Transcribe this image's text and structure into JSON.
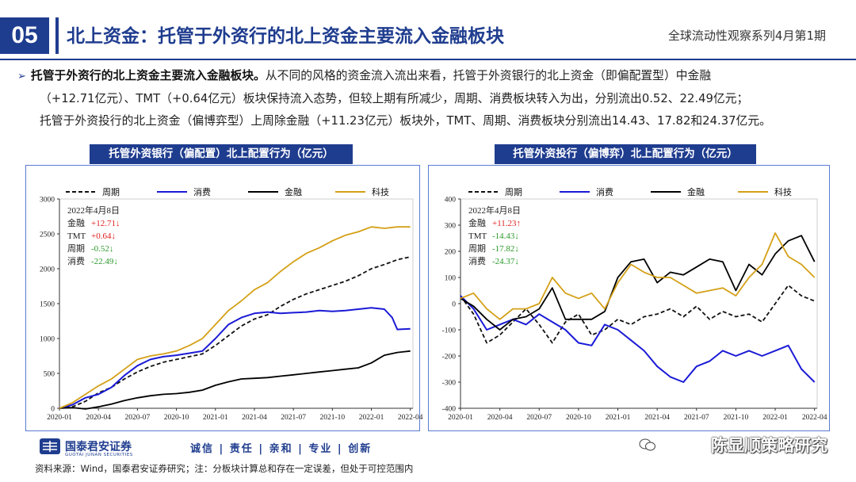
{
  "header": {
    "number": "05",
    "title": "北上资金：托管于外资行的北上资金主要流入金融板块",
    "subtitle": "全球流动性观察系列4月第1期"
  },
  "summary": {
    "bullet": "➢",
    "lead": "托管于外资行的北上资金主要流入金融板块。",
    "line1_rest": "从不同的风格的资金流入流出来看，托管于外资银行的北上资金（即偏配置型）中金融",
    "line2": "（+12.71亿元）、TMT（+0.64亿元）板块保持流入态势，但较上期有所减少，周期、消费板块转入为出，分别流出0.52、22.49亿元；",
    "line3": "托管于外资投行的北上资金（偏博弈型）上周除金融（+11.23亿元）板块外，TMT、周期、消费板块分别流出14.43、17.82和24.37亿元。"
  },
  "colors": {
    "zhouqi": "#111111",
    "xiaofei": "#1a1ad6",
    "jinrong": "#000000",
    "keji": "#d4a017",
    "up": "#e02020",
    "down": "#2a9a2a",
    "brand": "#1f3d8f"
  },
  "chart_data": [
    {
      "type": "line",
      "title": "托管外资银行（偏配置）北上配置行为（亿元）",
      "x_ticks": [
        "2020-01",
        "2020-04",
        "2020-07",
        "2020-10",
        "2021-01",
        "2021-04",
        "2021-07",
        "2021-10",
        "2022-01",
        "2022-04"
      ],
      "y_ticks": [
        "0",
        "500",
        "1000",
        "1500",
        "2000",
        "2500",
        "3000"
      ],
      "ylim": [
        0,
        3000
      ],
      "x_range": [
        0,
        27.2
      ],
      "legend": [
        "周期",
        "消费",
        "金融",
        "科技"
      ],
      "annotation": {
        "date": "2022年4月8日",
        "rows": [
          {
            "label": "金融",
            "value": "+12.71↓",
            "dir": "up"
          },
          {
            "label": "TMT",
            "value": "+0.64↓",
            "dir": "up"
          },
          {
            "label": "周期",
            "value": "-0.52↓",
            "dir": "down"
          },
          {
            "label": "消费",
            "value": "-22.49↓",
            "dir": "down"
          }
        ]
      },
      "series": [
        {
          "name": "周期",
          "style": "dashed",
          "points": [
            [
              0,
              0
            ],
            [
              1,
              20
            ],
            [
              2,
              100
            ],
            [
              3,
              220
            ],
            [
              4,
              300
            ],
            [
              5,
              420
            ],
            [
              6,
              520
            ],
            [
              7,
              600
            ],
            [
              8,
              660
            ],
            [
              9,
              700
            ],
            [
              10,
              740
            ],
            [
              11,
              780
            ],
            [
              12,
              900
            ],
            [
              13,
              1040
            ],
            [
              14,
              1180
            ],
            [
              15,
              1280
            ],
            [
              16,
              1340
            ],
            [
              17,
              1460
            ],
            [
              18,
              1560
            ],
            [
              19,
              1640
            ],
            [
              20,
              1700
            ],
            [
              21,
              1760
            ],
            [
              22,
              1820
            ],
            [
              23,
              1900
            ],
            [
              24,
              2000
            ],
            [
              25,
              2060
            ],
            [
              26,
              2130
            ],
            [
              27,
              2170
            ]
          ]
        },
        {
          "name": "消费",
          "style": "solid",
          "points": [
            [
              0,
              0
            ],
            [
              1,
              50
            ],
            [
              2,
              150
            ],
            [
              3,
              200
            ],
            [
              4,
              300
            ],
            [
              5,
              470
            ],
            [
              6,
              610
            ],
            [
              7,
              700
            ],
            [
              8,
              740
            ],
            [
              9,
              760
            ],
            [
              10,
              790
            ],
            [
              11,
              820
            ],
            [
              12,
              1000
            ],
            [
              13,
              1200
            ],
            [
              14,
              1300
            ],
            [
              15,
              1360
            ],
            [
              16,
              1380
            ],
            [
              17,
              1360
            ],
            [
              18,
              1370
            ],
            [
              19,
              1380
            ],
            [
              20,
              1400
            ],
            [
              21,
              1390
            ],
            [
              22,
              1400
            ],
            [
              23,
              1420
            ],
            [
              24,
              1440
            ],
            [
              25,
              1420
            ],
            [
              25.6,
              1300
            ],
            [
              26,
              1130
            ],
            [
              27,
              1140
            ]
          ]
        },
        {
          "name": "金融",
          "style": "solid",
          "points": [
            [
              0,
              0
            ],
            [
              1,
              10
            ],
            [
              2,
              -10
            ],
            [
              3,
              20
            ],
            [
              4,
              60
            ],
            [
              5,
              110
            ],
            [
              6,
              150
            ],
            [
              7,
              180
            ],
            [
              8,
              200
            ],
            [
              9,
              210
            ],
            [
              10,
              230
            ],
            [
              11,
              260
            ],
            [
              12,
              330
            ],
            [
              13,
              380
            ],
            [
              14,
              420
            ],
            [
              15,
              430
            ],
            [
              16,
              440
            ],
            [
              17,
              460
            ],
            [
              18,
              480
            ],
            [
              19,
              500
            ],
            [
              20,
              520
            ],
            [
              21,
              540
            ],
            [
              22,
              560
            ],
            [
              23,
              580
            ],
            [
              24,
              650
            ],
            [
              25,
              760
            ],
            [
              26,
              800
            ],
            [
              27,
              820
            ]
          ]
        },
        {
          "name": "科技",
          "style": "solid",
          "points": [
            [
              0,
              0
            ],
            [
              1,
              80
            ],
            [
              2,
              200
            ],
            [
              3,
              320
            ],
            [
              4,
              420
            ],
            [
              5,
              560
            ],
            [
              6,
              700
            ],
            [
              7,
              750
            ],
            [
              8,
              780
            ],
            [
              9,
              820
            ],
            [
              10,
              900
            ],
            [
              11,
              1000
            ],
            [
              12,
              1200
            ],
            [
              13,
              1400
            ],
            [
              14,
              1540
            ],
            [
              15,
              1700
            ],
            [
              16,
              1800
            ],
            [
              17,
              1960
            ],
            [
              18,
              2100
            ],
            [
              19,
              2220
            ],
            [
              20,
              2300
            ],
            [
              21,
              2400
            ],
            [
              22,
              2480
            ],
            [
              23,
              2530
            ],
            [
              24,
              2600
            ],
            [
              25,
              2580
            ],
            [
              26,
              2600
            ],
            [
              27,
              2600
            ]
          ]
        }
      ]
    },
    {
      "type": "line",
      "title": "托管外资投行（偏博弈）北上配置行为（亿元）",
      "x_ticks": [
        "2020-01",
        "2020-04",
        "2020-07",
        "2020-10",
        "2021-01",
        "2021-04",
        "2021-07",
        "2021-10",
        "2022-01",
        "2022-04"
      ],
      "y_ticks": [
        "-400",
        "-300",
        "-200",
        "-100",
        "0",
        "100",
        "200",
        "300",
        "400"
      ],
      "ylim": [
        -400,
        400
      ],
      "x_range": [
        0,
        27.2
      ],
      "legend": [
        "周期",
        "消费",
        "金融",
        "科技"
      ],
      "annotation": {
        "date": "2022年4月8日",
        "rows": [
          {
            "label": "金融",
            "value": "+11.23↑",
            "dir": "up"
          },
          {
            "label": "TMT",
            "value": "-14.43↓",
            "dir": "down"
          },
          {
            "label": "周期",
            "value": "-17.82↓",
            "dir": "down"
          },
          {
            "label": "消费",
            "value": "-24.37↓",
            "dir": "down"
          }
        ]
      },
      "series": [
        {
          "name": "周期",
          "style": "dashed",
          "points": [
            [
              0,
              30
            ],
            [
              1,
              -40
            ],
            [
              2,
              -150
            ],
            [
              3,
              -120
            ],
            [
              4,
              -70
            ],
            [
              5,
              -20
            ],
            [
              6,
              -80
            ],
            [
              7,
              -150
            ],
            [
              8,
              -70
            ],
            [
              9,
              -40
            ],
            [
              10,
              -120
            ],
            [
              11,
              -100
            ],
            [
              12,
              -60
            ],
            [
              13,
              -80
            ],
            [
              14,
              -50
            ],
            [
              15,
              -40
            ],
            [
              16,
              -20
            ],
            [
              17,
              -50
            ],
            [
              18,
              -10
            ],
            [
              19,
              -60
            ],
            [
              20,
              -30
            ],
            [
              21,
              -50
            ],
            [
              22,
              -40
            ],
            [
              23,
              -70
            ],
            [
              24,
              0
            ],
            [
              25,
              70
            ],
            [
              26,
              30
            ],
            [
              27,
              10
            ]
          ]
        },
        {
          "name": "消费",
          "style": "solid",
          "points": [
            [
              0,
              30
            ],
            [
              1,
              -20
            ],
            [
              2,
              -100
            ],
            [
              3,
              -80
            ],
            [
              4,
              -60
            ],
            [
              5,
              -80
            ],
            [
              6,
              -40
            ],
            [
              7,
              -70
            ],
            [
              8,
              -100
            ],
            [
              9,
              -150
            ],
            [
              10,
              -160
            ],
            [
              11,
              -80
            ],
            [
              12,
              -100
            ],
            [
              13,
              -140
            ],
            [
              14,
              -180
            ],
            [
              15,
              -240
            ],
            [
              16,
              -280
            ],
            [
              17,
              -300
            ],
            [
              18,
              -240
            ],
            [
              19,
              -220
            ],
            [
              20,
              -180
            ],
            [
              21,
              -200
            ],
            [
              22,
              -180
            ],
            [
              23,
              -200
            ],
            [
              24,
              -180
            ],
            [
              25,
              -160
            ],
            [
              26,
              -250
            ],
            [
              27,
              -300
            ]
          ]
        },
        {
          "name": "金融",
          "style": "solid",
          "points": [
            [
              0,
              20
            ],
            [
              1,
              -10
            ],
            [
              2,
              -60
            ],
            [
              3,
              -100
            ],
            [
              4,
              -60
            ],
            [
              5,
              -50
            ],
            [
              6,
              -20
            ],
            [
              7,
              60
            ],
            [
              8,
              -60
            ],
            [
              9,
              -60
            ],
            [
              10,
              -60
            ],
            [
              11,
              -30
            ],
            [
              12,
              100
            ],
            [
              13,
              160
            ],
            [
              14,
              170
            ],
            [
              15,
              80
            ],
            [
              16,
              120
            ],
            [
              17,
              110
            ],
            [
              18,
              140
            ],
            [
              19,
              170
            ],
            [
              20,
              160
            ],
            [
              21,
              50
            ],
            [
              22,
              150
            ],
            [
              23,
              110
            ],
            [
              24,
              190
            ],
            [
              25,
              240
            ],
            [
              26,
              260
            ],
            [
              27,
              160
            ]
          ]
        },
        {
          "name": "科技",
          "style": "solid",
          "points": [
            [
              0,
              20
            ],
            [
              1,
              40
            ],
            [
              2,
              -20
            ],
            [
              3,
              -60
            ],
            [
              4,
              -20
            ],
            [
              5,
              -20
            ],
            [
              6,
              0
            ],
            [
              7,
              100
            ],
            [
              8,
              40
            ],
            [
              9,
              20
            ],
            [
              10,
              40
            ],
            [
              11,
              -20
            ],
            [
              12,
              80
            ],
            [
              13,
              150
            ],
            [
              14,
              120
            ],
            [
              15,
              100
            ],
            [
              16,
              100
            ],
            [
              17,
              70
            ],
            [
              18,
              40
            ],
            [
              19,
              50
            ],
            [
              20,
              60
            ],
            [
              21,
              30
            ],
            [
              22,
              100
            ],
            [
              23,
              150
            ],
            [
              24,
              270
            ],
            [
              25,
              180
            ],
            [
              26,
              150
            ],
            [
              27,
              100
            ]
          ]
        }
      ]
    }
  ],
  "footer": {
    "brand": "国泰君安证券",
    "brand_en": "GUOTAI JUNAN SECURITIES",
    "slogan": "诚信 | 责任 | 亲和 | 专业 | 创新",
    "source": "资料来源：Wind，国泰君安证券研究；注：分板块计算总和存在一定误差，但处于可控范围内",
    "watermark": "陈显顺策略研究"
  }
}
